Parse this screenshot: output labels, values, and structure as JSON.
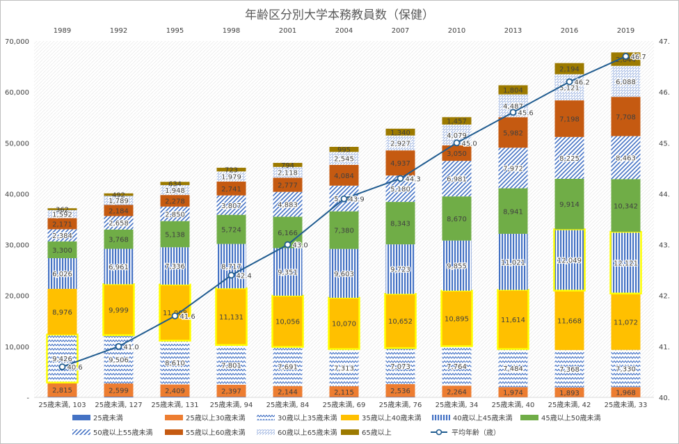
{
  "chart_data": {
    "type": "bar",
    "stacked": true,
    "title": "年齢区分別大学本務教員数（保健）",
    "years": [
      "1989",
      "1992",
      "1995",
      "1998",
      "2001",
      "2004",
      "2007",
      "2010",
      "2013",
      "2016",
      "2019"
    ],
    "categories": [
      "25歳未満, 103",
      "25歳未満, 127",
      "25歳未満, 131",
      "25歳未満, 94",
      "25歳未満, 84",
      "25歳未満, 69",
      "25歳未満, 76",
      "25歳未満, 34",
      "25歳未満, 40",
      "25歳未満, 42",
      "25歳未満, 33"
    ],
    "left_axis": {
      "ylim": [
        0,
        70000
      ],
      "ticks": [
        "-",
        "10,000",
        "20,000",
        "30,000",
        "40,000",
        "50,000",
        "60,000",
        "70,000"
      ]
    },
    "right_axis": {
      "ylim": [
        40,
        47
      ],
      "ticks": [
        "40.",
        "41.",
        "42.",
        "43.",
        "44.",
        "45.",
        "46.",
        "47."
      ]
    },
    "series": [
      {
        "name": "25歳未満",
        "color": "#4472c4",
        "pattern": "solid",
        "values": [
          103,
          127,
          131,
          94,
          84,
          69,
          76,
          34,
          40,
          42,
          33
        ],
        "labels": [
          "",
          "",
          "",
          "",
          "",
          "",
          "",
          "",
          "",
          "",
          ""
        ]
      },
      {
        "name": "25歳以上30歳未満",
        "color": "#ed7d31",
        "pattern": "solid",
        "values": [
          2815,
          2599,
          2409,
          2397,
          2144,
          2115,
          2536,
          2264,
          1974,
          1893,
          1968
        ],
        "labels": [
          "2,815",
          "2,599",
          "2,409",
          "2,397",
          "2,144",
          "2,115",
          "2,536",
          "2,264",
          "1,974",
          "1,893",
          "1,968"
        ]
      },
      {
        "name": "30歳以上35歳未満",
        "color": "#4472c4",
        "pattern": "zigzag",
        "values": [
          9426,
          9506,
          8610,
          7801,
          7691,
          7313,
          7073,
          7764,
          7484,
          7368,
          7330
        ],
        "labels": [
          "9,426",
          "9,506",
          "8,610",
          "7,801",
          "7,691",
          "7,313",
          "7,073",
          "7,764",
          "7,484",
          "7,368",
          "7,330"
        ]
      },
      {
        "name": "35歳以上40歳未満",
        "color": "#ffc000",
        "pattern": "solid",
        "values": [
          8976,
          9999,
          11008,
          11131,
          10056,
          10070,
          10652,
          10895,
          11614,
          11668,
          11072
        ],
        "labels": [
          "8,976",
          "9,999",
          "11,008",
          "11,131",
          "10,056",
          "10,070",
          "10,652",
          "10,895",
          "11,614",
          "11,668",
          "11,072"
        ]
      },
      {
        "name": "40歳以上45歳未満",
        "color": "#4472c4",
        "pattern": "vertical",
        "values": [
          6026,
          6961,
          7336,
          8717,
          9351,
          9603,
          9723,
          9855,
          11021,
          12049,
          12121
        ],
        "labels": [
          "6,026",
          "6,961",
          "7,336",
          "8,717",
          "9,351",
          "9,603",
          "9,723",
          "9,855",
          "11,021",
          "12,049",
          "12,121"
        ]
      },
      {
        "name": "45歳以上50歳未満",
        "color": "#70ad47",
        "pattern": "solid",
        "values": [
          3300,
          3768,
          5138,
          5724,
          6166,
          7380,
          8343,
          8670,
          8941,
          9914,
          10342
        ],
        "labels": [
          "3,300",
          "3,768",
          "5,138",
          "5,724",
          "6,166",
          "7,380",
          "8,343",
          "8,670",
          "8,941",
          "9,914",
          "10,342"
        ]
      },
      {
        "name": "50歳以上55歳未満",
        "color": "#4472c4",
        "pattern": "diagonal",
        "values": [
          2384,
          2658,
          2850,
          3807,
          4883,
          5044,
          5180,
          6981,
          7972,
          8225,
          8463
        ],
        "labels": [
          "2,384",
          "2,658",
          "2,850",
          "3,807",
          "4,883",
          "5,044",
          "5,180",
          "6,981",
          "7,972",
          "8,225",
          "8,463"
        ]
      },
      {
        "name": "55歳以上60歳未満",
        "color": "#c55a11",
        "pattern": "solid",
        "values": [
          2171,
          2184,
          2278,
          2741,
          2777,
          4084,
          4937,
          3050,
          5982,
          7198,
          7708
        ],
        "labels": [
          "2,171",
          "2,184",
          "2,278",
          "2,741",
          "2,777",
          "4,084",
          "4,937",
          "3,050",
          "5,982",
          "7,198",
          "7,708"
        ]
      },
      {
        "name": "60歳以上65歳未満",
        "color": "#4472c4",
        "pattern": "dots",
        "values": [
          1592,
          1789,
          1948,
          1979,
          2118,
          2545,
          2927,
          4079,
          4487,
          5121,
          6088
        ],
        "labels": [
          "1,592",
          "1,789",
          "1,948",
          "1,979",
          "2,118",
          "2,545",
          "2,927",
          "4,079",
          "4,487",
          "5,121",
          "6,088"
        ]
      },
      {
        "name": "65歳以上",
        "color": "#9c7a00",
        "pattern": "solid",
        "values": [
          362,
          492,
          634,
          723,
          794,
          995,
          1340,
          1457,
          1804,
          2194,
          2644
        ],
        "labels": [
          "362",
          "492",
          "634",
          "723",
          "794",
          "995",
          "1,340",
          "1,457",
          "1,804",
          "2,194",
          "2,644"
        ]
      }
    ],
    "line": {
      "name": "平均年齢（歳）",
      "color": "#1f5b8f",
      "axis": "right",
      "values": [
        40.6,
        41.0,
        41.6,
        42.4,
        43.0,
        43.9,
        44.3,
        45.0,
        45.6,
        46.2,
        46.7
      ],
      "labels": [
        "40.6",
        "41.0",
        "41.6",
        "42.4",
        "43.0",
        "43.9",
        "44.3",
        "45.0",
        "45.6",
        "46.2",
        "46.7"
      ]
    },
    "highlighted_segments": [
      [
        0,
        2
      ],
      [
        1,
        3
      ],
      [
        2,
        3
      ],
      [
        3,
        3
      ],
      [
        4,
        3
      ],
      [
        5,
        3
      ],
      [
        6,
        3
      ],
      [
        7,
        3
      ],
      [
        8,
        3
      ],
      [
        9,
        4
      ],
      [
        10,
        4
      ]
    ],
    "highlight_color": "#ffff00",
    "legend_position": "bottom"
  }
}
